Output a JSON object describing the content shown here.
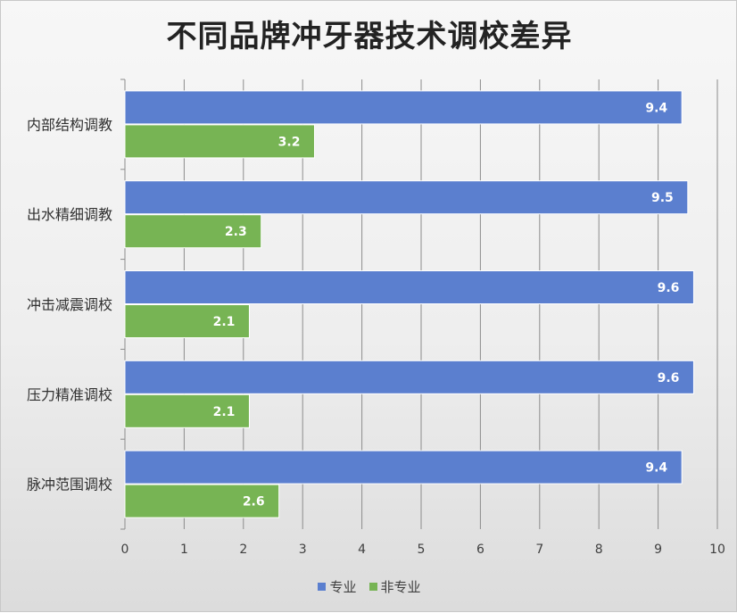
{
  "chart_data": {
    "type": "bar",
    "orientation": "horizontal",
    "title": "不同品牌冲牙器技术调校差异",
    "categories": [
      "内部结构调教",
      "出水精细调教",
      "冲击减震调校",
      "压力精准调校",
      "脉冲范围调校"
    ],
    "series": [
      {
        "name": "专业",
        "color": "#5b7fcf",
        "values": [
          9.4,
          9.5,
          9.6,
          9.6,
          9.4
        ]
      },
      {
        "name": "非专业",
        "color": "#77b454",
        "values": [
          3.2,
          2.3,
          2.1,
          2.1,
          2.6
        ]
      }
    ],
    "xlim": [
      0,
      10
    ],
    "xticks": [
      "0",
      "1",
      "2",
      "3",
      "4",
      "5",
      "6",
      "7",
      "8",
      "9",
      "10"
    ],
    "grid": "vertical",
    "legend": "bottom"
  }
}
